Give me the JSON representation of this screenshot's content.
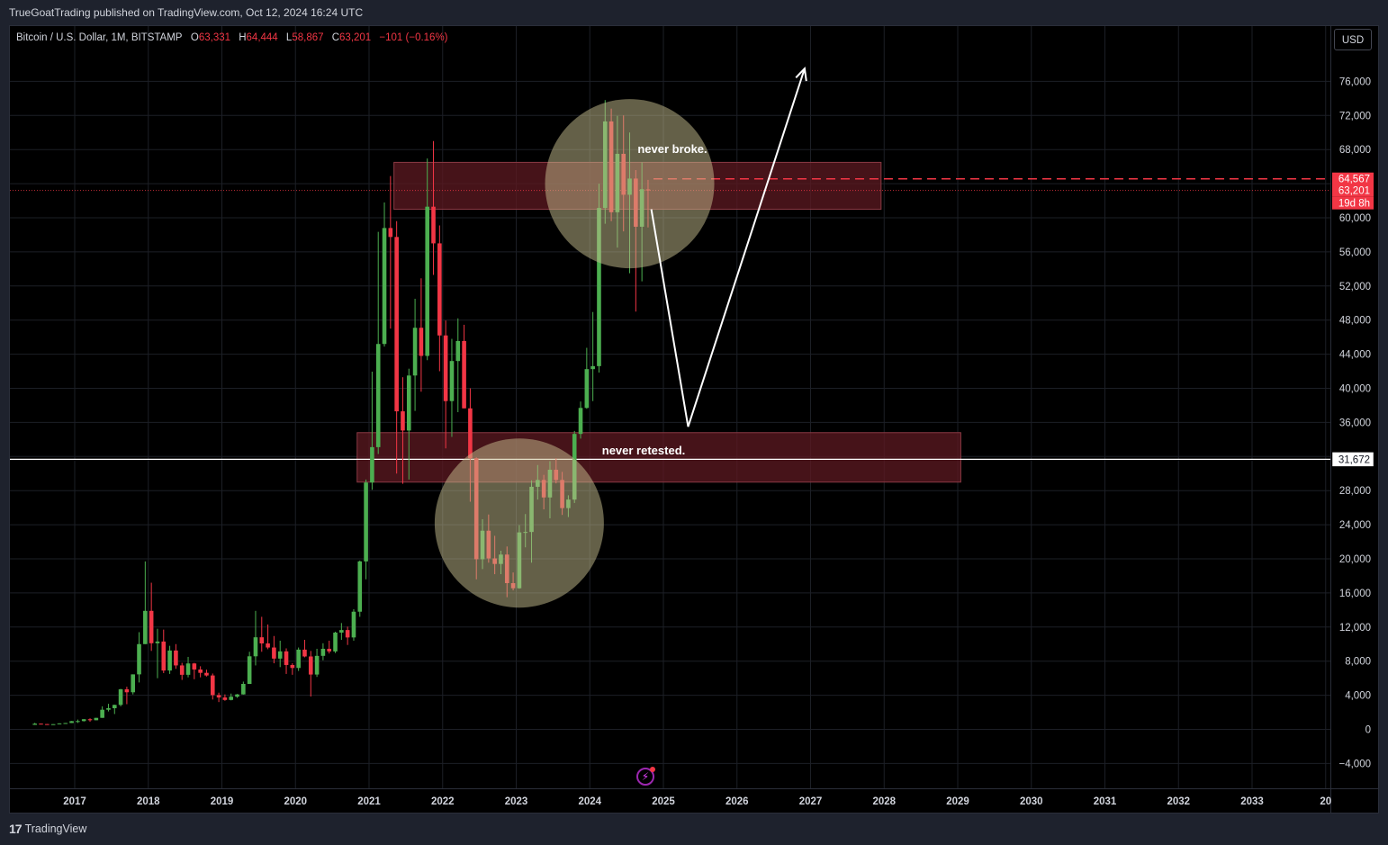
{
  "header": {
    "published_text": "TrueGoatTrading published on TradingView.com, Oct 12, 2024 16:24 UTC"
  },
  "legend": {
    "symbol": "Bitcoin / U.S. Dollar, 1M, BITSTAMP",
    "open_label": "O",
    "open_value": "63,331",
    "high_label": "H",
    "high_value": "64,444",
    "low_label": "L",
    "low_value": "58,867",
    "close_label": "C",
    "close_value": "63,201",
    "change": "−101 (−0.16%)"
  },
  "currency_button": "USD",
  "footer": {
    "brand": "TradingView",
    "logo_glyph": "17"
  },
  "annotations": {
    "top_zone_label": "never broke.",
    "bottom_zone_label": "never retested."
  },
  "price_tags": {
    "dashed_level": "64,567",
    "last_price": "63,201",
    "countdown": "19d 8h",
    "horizontal_line": "31,672"
  },
  "colors": {
    "up": "#4caf50",
    "down": "#f23645",
    "background": "#000000",
    "zone_fill": "#5d1a22",
    "circle_fill": "#c8c090",
    "annotation_arrow": "#ffffff"
  },
  "chart_data": {
    "type": "candlestick",
    "interval": "1M",
    "ylim": [
      -6000,
      80000
    ],
    "y_ticks": [
      "76,000",
      "72,000",
      "68,000",
      "64,000",
      "60,000",
      "56,000",
      "52,000",
      "48,000",
      "44,000",
      "40,000",
      "36,000",
      "32,000",
      "28,000",
      "24,000",
      "20,000",
      "16,000",
      "12,000",
      "8,000",
      "4,000",
      "0",
      "−4,000"
    ],
    "x_ticks": [
      "2017",
      "2018",
      "2019",
      "2020",
      "2021",
      "2022",
      "2023",
      "2024",
      "2025",
      "2026",
      "2027",
      "2028",
      "2029",
      "2030",
      "2031",
      "2032",
      "2033",
      "20"
    ],
    "candles": [
      {
        "t": "2016-06",
        "o": 530,
        "h": 770,
        "l": 520,
        "c": 670
      },
      {
        "t": "2016-07",
        "o": 670,
        "h": 680,
        "l": 600,
        "c": 620
      },
      {
        "t": "2016-08",
        "o": 620,
        "h": 630,
        "l": 540,
        "c": 575
      },
      {
        "t": "2016-09",
        "o": 575,
        "h": 610,
        "l": 570,
        "c": 610
      },
      {
        "t": "2016-10",
        "o": 610,
        "h": 710,
        "l": 605,
        "c": 700
      },
      {
        "t": "2016-11",
        "o": 700,
        "h": 750,
        "l": 690,
        "c": 745
      },
      {
        "t": "2016-12",
        "o": 745,
        "h": 980,
        "l": 740,
        "c": 965
      },
      {
        "t": "2017-01",
        "o": 965,
        "h": 1150,
        "l": 750,
        "c": 970
      },
      {
        "t": "2017-02",
        "o": 970,
        "h": 1200,
        "l": 920,
        "c": 1190
      },
      {
        "t": "2017-03",
        "o": 1190,
        "h": 1300,
        "l": 900,
        "c": 1070
      },
      {
        "t": "2017-04",
        "o": 1070,
        "h": 1350,
        "l": 1060,
        "c": 1350
      },
      {
        "t": "2017-05",
        "o": 1350,
        "h": 2700,
        "l": 1350,
        "c": 2300
      },
      {
        "t": "2017-06",
        "o": 2300,
        "h": 3000,
        "l": 2100,
        "c": 2480
      },
      {
        "t": "2017-07",
        "o": 2480,
        "h": 2900,
        "l": 1800,
        "c": 2870
      },
      {
        "t": "2017-08",
        "o": 2870,
        "h": 4750,
        "l": 2700,
        "c": 4700
      },
      {
        "t": "2017-09",
        "o": 4700,
        "h": 5000,
        "l": 2950,
        "c": 4350
      },
      {
        "t": "2017-10",
        "o": 4350,
        "h": 6450,
        "l": 4100,
        "c": 6450
      },
      {
        "t": "2017-11",
        "o": 6450,
        "h": 11400,
        "l": 5500,
        "c": 10000
      },
      {
        "t": "2017-12",
        "o": 10000,
        "h": 19700,
        "l": 10000,
        "c": 13900
      },
      {
        "t": "2018-01",
        "o": 13900,
        "h": 17200,
        "l": 9200,
        "c": 10100
      },
      {
        "t": "2018-02",
        "o": 10100,
        "h": 11800,
        "l": 6000,
        "c": 10300
      },
      {
        "t": "2018-03",
        "o": 10300,
        "h": 11700,
        "l": 6600,
        "c": 6900
      },
      {
        "t": "2018-04",
        "o": 6900,
        "h": 9800,
        "l": 6500,
        "c": 9250
      },
      {
        "t": "2018-05",
        "o": 9250,
        "h": 10000,
        "l": 7100,
        "c": 7500
      },
      {
        "t": "2018-06",
        "o": 7500,
        "h": 7800,
        "l": 5800,
        "c": 6400
      },
      {
        "t": "2018-07",
        "o": 6400,
        "h": 8500,
        "l": 6100,
        "c": 7730
      },
      {
        "t": "2018-08",
        "o": 7730,
        "h": 7800,
        "l": 5880,
        "c": 7020
      },
      {
        "t": "2018-09",
        "o": 7020,
        "h": 7400,
        "l": 6100,
        "c": 6630
      },
      {
        "t": "2018-10",
        "o": 6630,
        "h": 7000,
        "l": 6200,
        "c": 6320
      },
      {
        "t": "2018-11",
        "o": 6320,
        "h": 6550,
        "l": 3500,
        "c": 4020
      },
      {
        "t": "2018-12",
        "o": 4020,
        "h": 4300,
        "l": 3200,
        "c": 3740
      },
      {
        "t": "2019-01",
        "o": 3740,
        "h": 4100,
        "l": 3350,
        "c": 3450
      },
      {
        "t": "2019-02",
        "o": 3450,
        "h": 4200,
        "l": 3400,
        "c": 3830
      },
      {
        "t": "2019-03",
        "o": 3830,
        "h": 4150,
        "l": 3700,
        "c": 4100
      },
      {
        "t": "2019-04",
        "o": 4100,
        "h": 5600,
        "l": 4080,
        "c": 5330
      },
      {
        "t": "2019-05",
        "o": 5330,
        "h": 9100,
        "l": 5330,
        "c": 8570
      },
      {
        "t": "2019-06",
        "o": 8570,
        "h": 13900,
        "l": 7500,
        "c": 10800
      },
      {
        "t": "2019-07",
        "o": 10800,
        "h": 13200,
        "l": 9100,
        "c": 10080
      },
      {
        "t": "2019-08",
        "o": 10080,
        "h": 12300,
        "l": 9400,
        "c": 9600
      },
      {
        "t": "2019-09",
        "o": 9600,
        "h": 10950,
        "l": 7750,
        "c": 8300
      },
      {
        "t": "2019-10",
        "o": 8300,
        "h": 10400,
        "l": 7300,
        "c": 9150
      },
      {
        "t": "2019-11",
        "o": 9150,
        "h": 9500,
        "l": 6500,
        "c": 7550
      },
      {
        "t": "2019-12",
        "o": 7550,
        "h": 7750,
        "l": 6400,
        "c": 7200
      },
      {
        "t": "2020-01",
        "o": 7200,
        "h": 9600,
        "l": 6850,
        "c": 9350
      },
      {
        "t": "2020-02",
        "o": 9350,
        "h": 10500,
        "l": 8450,
        "c": 8550
      },
      {
        "t": "2020-03",
        "o": 8550,
        "h": 9200,
        "l": 3850,
        "c": 6430
      },
      {
        "t": "2020-04",
        "o": 6430,
        "h": 9450,
        "l": 6150,
        "c": 8620
      },
      {
        "t": "2020-05",
        "o": 8620,
        "h": 10100,
        "l": 8100,
        "c": 9450
      },
      {
        "t": "2020-06",
        "o": 9450,
        "h": 10400,
        "l": 8900,
        "c": 9140
      },
      {
        "t": "2020-07",
        "o": 9140,
        "h": 11450,
        "l": 8950,
        "c": 11350
      },
      {
        "t": "2020-08",
        "o": 11350,
        "h": 12470,
        "l": 10500,
        "c": 11650
      },
      {
        "t": "2020-09",
        "o": 11650,
        "h": 12050,
        "l": 9900,
        "c": 10780
      },
      {
        "t": "2020-10",
        "o": 10780,
        "h": 14100,
        "l": 10400,
        "c": 13800
      },
      {
        "t": "2020-11",
        "o": 13800,
        "h": 19800,
        "l": 13200,
        "c": 19700
      },
      {
        "t": "2020-12",
        "o": 19700,
        "h": 29300,
        "l": 17600,
        "c": 28950
      },
      {
        "t": "2021-01",
        "o": 28950,
        "h": 41950,
        "l": 28100,
        "c": 33100
      },
      {
        "t": "2021-02",
        "o": 33100,
        "h": 58350,
        "l": 32300,
        "c": 45200
      },
      {
        "t": "2021-03",
        "o": 45200,
        "h": 61800,
        "l": 44900,
        "c": 58800
      },
      {
        "t": "2021-04",
        "o": 58800,
        "h": 64900,
        "l": 47000,
        "c": 57750
      },
      {
        "t": "2021-05",
        "o": 57750,
        "h": 59600,
        "l": 30000,
        "c": 37300
      },
      {
        "t": "2021-06",
        "o": 37300,
        "h": 41300,
        "l": 28800,
        "c": 35050
      },
      {
        "t": "2021-07",
        "o": 35050,
        "h": 42300,
        "l": 29300,
        "c": 41500
      },
      {
        "t": "2021-08",
        "o": 41500,
        "h": 50500,
        "l": 37350,
        "c": 47100
      },
      {
        "t": "2021-09",
        "o": 47100,
        "h": 52900,
        "l": 39600,
        "c": 43800
      },
      {
        "t": "2021-10",
        "o": 43800,
        "h": 66950,
        "l": 43300,
        "c": 61300
      },
      {
        "t": "2021-11",
        "o": 61300,
        "h": 69000,
        "l": 53300,
        "c": 57000
      },
      {
        "t": "2021-12",
        "o": 57000,
        "h": 59100,
        "l": 42000,
        "c": 46200
      },
      {
        "t": "2022-01",
        "o": 46200,
        "h": 47950,
        "l": 32950,
        "c": 38500
      },
      {
        "t": "2022-02",
        "o": 38500,
        "h": 45800,
        "l": 34300,
        "c": 43200
      },
      {
        "t": "2022-03",
        "o": 43200,
        "h": 48200,
        "l": 37200,
        "c": 45550
      },
      {
        "t": "2022-04",
        "o": 45550,
        "h": 47450,
        "l": 37650,
        "c": 37650
      },
      {
        "t": "2022-05",
        "o": 37650,
        "h": 40000,
        "l": 26700,
        "c": 31800
      },
      {
        "t": "2022-06",
        "o": 31800,
        "h": 31900,
        "l": 17600,
        "c": 19950
      },
      {
        "t": "2022-07",
        "o": 19950,
        "h": 24650,
        "l": 18800,
        "c": 23300
      },
      {
        "t": "2022-08",
        "o": 23300,
        "h": 25200,
        "l": 19550,
        "c": 20050
      },
      {
        "t": "2022-09",
        "o": 20050,
        "h": 22700,
        "l": 18200,
        "c": 19400
      },
      {
        "t": "2022-10",
        "o": 19400,
        "h": 20950,
        "l": 18200,
        "c": 20500
      },
      {
        "t": "2022-11",
        "o": 20500,
        "h": 21450,
        "l": 15500,
        "c": 17150
      },
      {
        "t": "2022-12",
        "o": 17150,
        "h": 18400,
        "l": 16300,
        "c": 16550
      },
      {
        "t": "2023-01",
        "o": 16550,
        "h": 23950,
        "l": 16500,
        "c": 23100
      },
      {
        "t": "2023-02",
        "o": 23100,
        "h": 25250,
        "l": 21350,
        "c": 23150
      },
      {
        "t": "2023-03",
        "o": 23150,
        "h": 29200,
        "l": 19550,
        "c": 28450
      },
      {
        "t": "2023-04",
        "o": 28450,
        "h": 31000,
        "l": 26950,
        "c": 29250
      },
      {
        "t": "2023-05",
        "o": 29250,
        "h": 29850,
        "l": 25800,
        "c": 27200
      },
      {
        "t": "2023-06",
        "o": 27200,
        "h": 31450,
        "l": 24750,
        "c": 30450
      },
      {
        "t": "2023-07",
        "o": 30450,
        "h": 31800,
        "l": 28850,
        "c": 29250
      },
      {
        "t": "2023-08",
        "o": 29250,
        "h": 30200,
        "l": 25150,
        "c": 25950
      },
      {
        "t": "2023-09",
        "o": 25950,
        "h": 27450,
        "l": 24900,
        "c": 26950
      },
      {
        "t": "2023-10",
        "o": 26950,
        "h": 35000,
        "l": 26550,
        "c": 34650
      },
      {
        "t": "2023-11",
        "o": 34650,
        "h": 38450,
        "l": 34100,
        "c": 37700
      },
      {
        "t": "2023-12",
        "o": 37700,
        "h": 44750,
        "l": 37600,
        "c": 42250
      },
      {
        "t": "2024-01",
        "o": 42250,
        "h": 48950,
        "l": 38500,
        "c": 42600
      },
      {
        "t": "2024-02",
        "o": 42600,
        "h": 64000,
        "l": 41850,
        "c": 61150
      },
      {
        "t": "2024-03",
        "o": 61150,
        "h": 73800,
        "l": 59300,
        "c": 71300
      },
      {
        "t": "2024-04",
        "o": 71300,
        "h": 72800,
        "l": 59600,
        "c": 60650
      },
      {
        "t": "2024-05",
        "o": 60650,
        "h": 71950,
        "l": 56500,
        "c": 67500
      },
      {
        "t": "2024-06",
        "o": 67500,
        "h": 72000,
        "l": 58400,
        "c": 62700
      },
      {
        "t": "2024-07",
        "o": 62700,
        "h": 70000,
        "l": 53500,
        "c": 64600
      },
      {
        "t": "2024-08",
        "o": 64600,
        "h": 65600,
        "l": 49000,
        "c": 58950
      },
      {
        "t": "2024-09",
        "o": 58950,
        "h": 66500,
        "l": 52550,
        "c": 63350
      },
      {
        "t": "2024-10",
        "o": 63331,
        "h": 64444,
        "l": 58867,
        "c": 63201
      }
    ],
    "horizontal_levels": [
      64567,
      63201,
      31672
    ],
    "zones": [
      {
        "label": "never broke.",
        "from": "2021-05",
        "to": "2027-12",
        "price_low": 61000,
        "price_high": 66500
      },
      {
        "label": "never retested.",
        "from": "2020-11",
        "to": "2029-01",
        "price_low": 29000,
        "price_high": 34800
      }
    ],
    "circles": [
      {
        "center_t": "2024-07",
        "center_price": 64000
      },
      {
        "center_t": "2023-01",
        "center_price": 24200
      }
    ],
    "projection_path": [
      {
        "t": "2024-12",
        "price": 61000
      },
      {
        "t": "2025-06",
        "price": 35500
      },
      {
        "t": "2027-01",
        "price": 77500
      }
    ]
  }
}
